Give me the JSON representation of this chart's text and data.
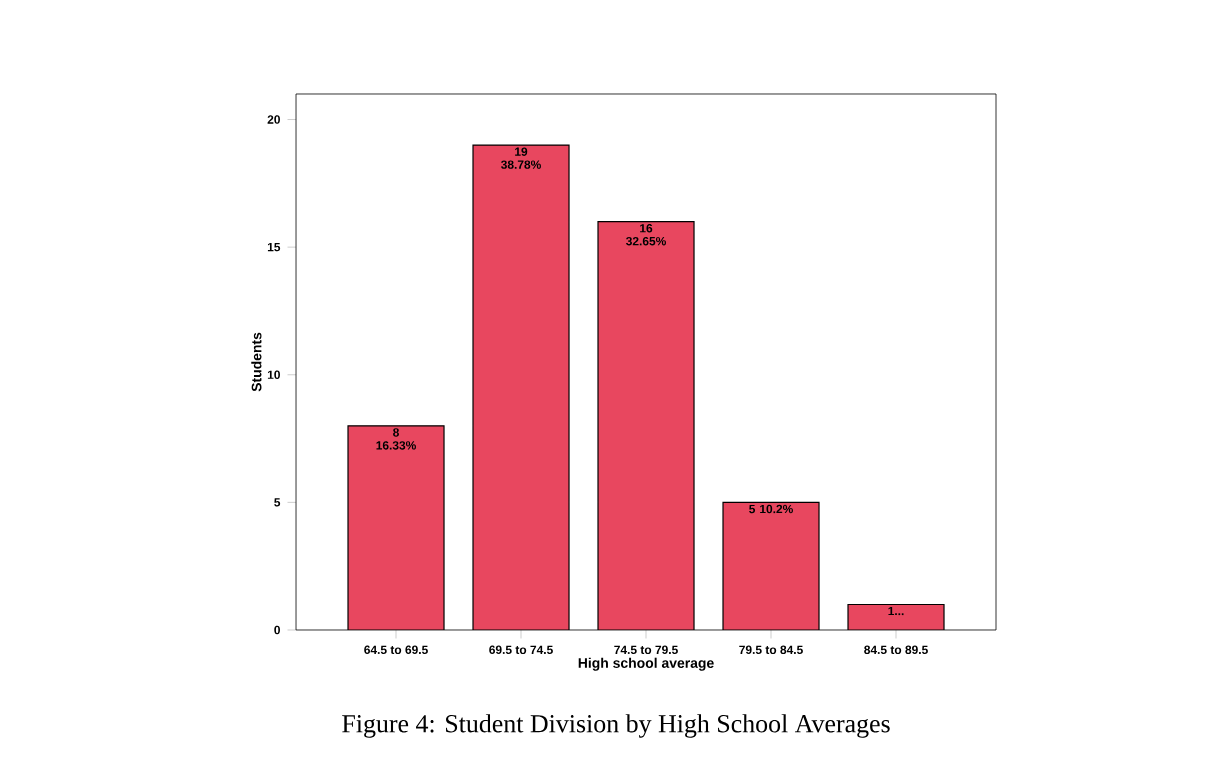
{
  "chart_data": {
    "type": "bar",
    "xlabel": "High school average",
    "ylabel": "Students",
    "categories": [
      "64.5 to 69.5",
      "69.5 to 74.5",
      "74.5 to 79.5",
      "79.5 to 84.5",
      "84.5 to 89.5"
    ],
    "values": [
      8,
      19,
      16,
      5,
      1
    ],
    "color": "#e8475f",
    "value_labels": [
      "8 16.33%",
      "19 38.78%",
      "16 32.65%",
      "5 10.2%",
      "1..."
    ],
    "ylim": [
      0,
      21
    ],
    "yticks": [
      0,
      5,
      10,
      15,
      20
    ],
    "grid": false,
    "annotations": [
      "Figure 4: Student Division by High School Averages"
    ]
  }
}
